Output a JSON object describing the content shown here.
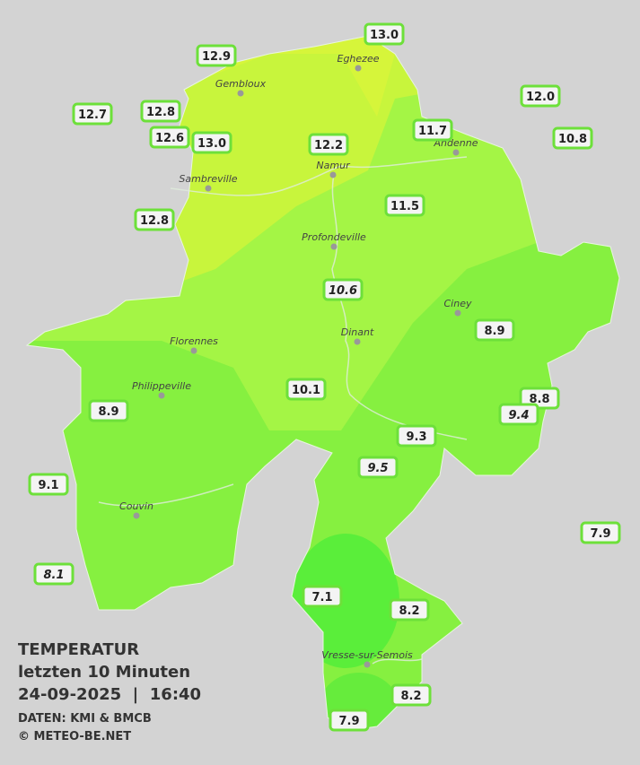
{
  "map": {
    "title": "TEMPERATUR",
    "subtitle": "letzten 10 Minuten",
    "datetime": "24-09-2025  |  16:40",
    "source": "DATEN: KMI & BMCB",
    "credit": "© METEO-BE.NET",
    "cities": [
      "Eghezee",
      "Gembloux",
      "Andenne",
      "Namur",
      "Sambreville",
      "Profondeville",
      "Ciney",
      "Dinant",
      "Florennes",
      "Philippeville",
      "Couvin",
      "Vresse-sur-Semois"
    ],
    "stations": [
      {
        "label": "13.0"
      },
      {
        "label": "12.9"
      },
      {
        "label": "12.0"
      },
      {
        "label": "12.7"
      },
      {
        "label": "12.8"
      },
      {
        "label": "12.6"
      },
      {
        "label": "13.0"
      },
      {
        "label": "12.2"
      },
      {
        "label": "11.7"
      },
      {
        "label": "10.8"
      },
      {
        "label": "11.5"
      },
      {
        "label": "12.8"
      },
      {
        "label": "10.6",
        "italic": true
      },
      {
        "label": "8.9"
      },
      {
        "label": "10.1"
      },
      {
        "label": "8.9"
      },
      {
        "label": "8.8"
      },
      {
        "label": "9.4",
        "italic": true
      },
      {
        "label": "9.3"
      },
      {
        "label": "9.5",
        "italic": true
      },
      {
        "label": "9.1"
      },
      {
        "label": "7.9"
      },
      {
        "label": "8.1",
        "italic": true
      },
      {
        "label": "7.1"
      },
      {
        "label": "8.2"
      },
      {
        "label": "8.2"
      },
      {
        "label": "7.9"
      }
    ]
  }
}
